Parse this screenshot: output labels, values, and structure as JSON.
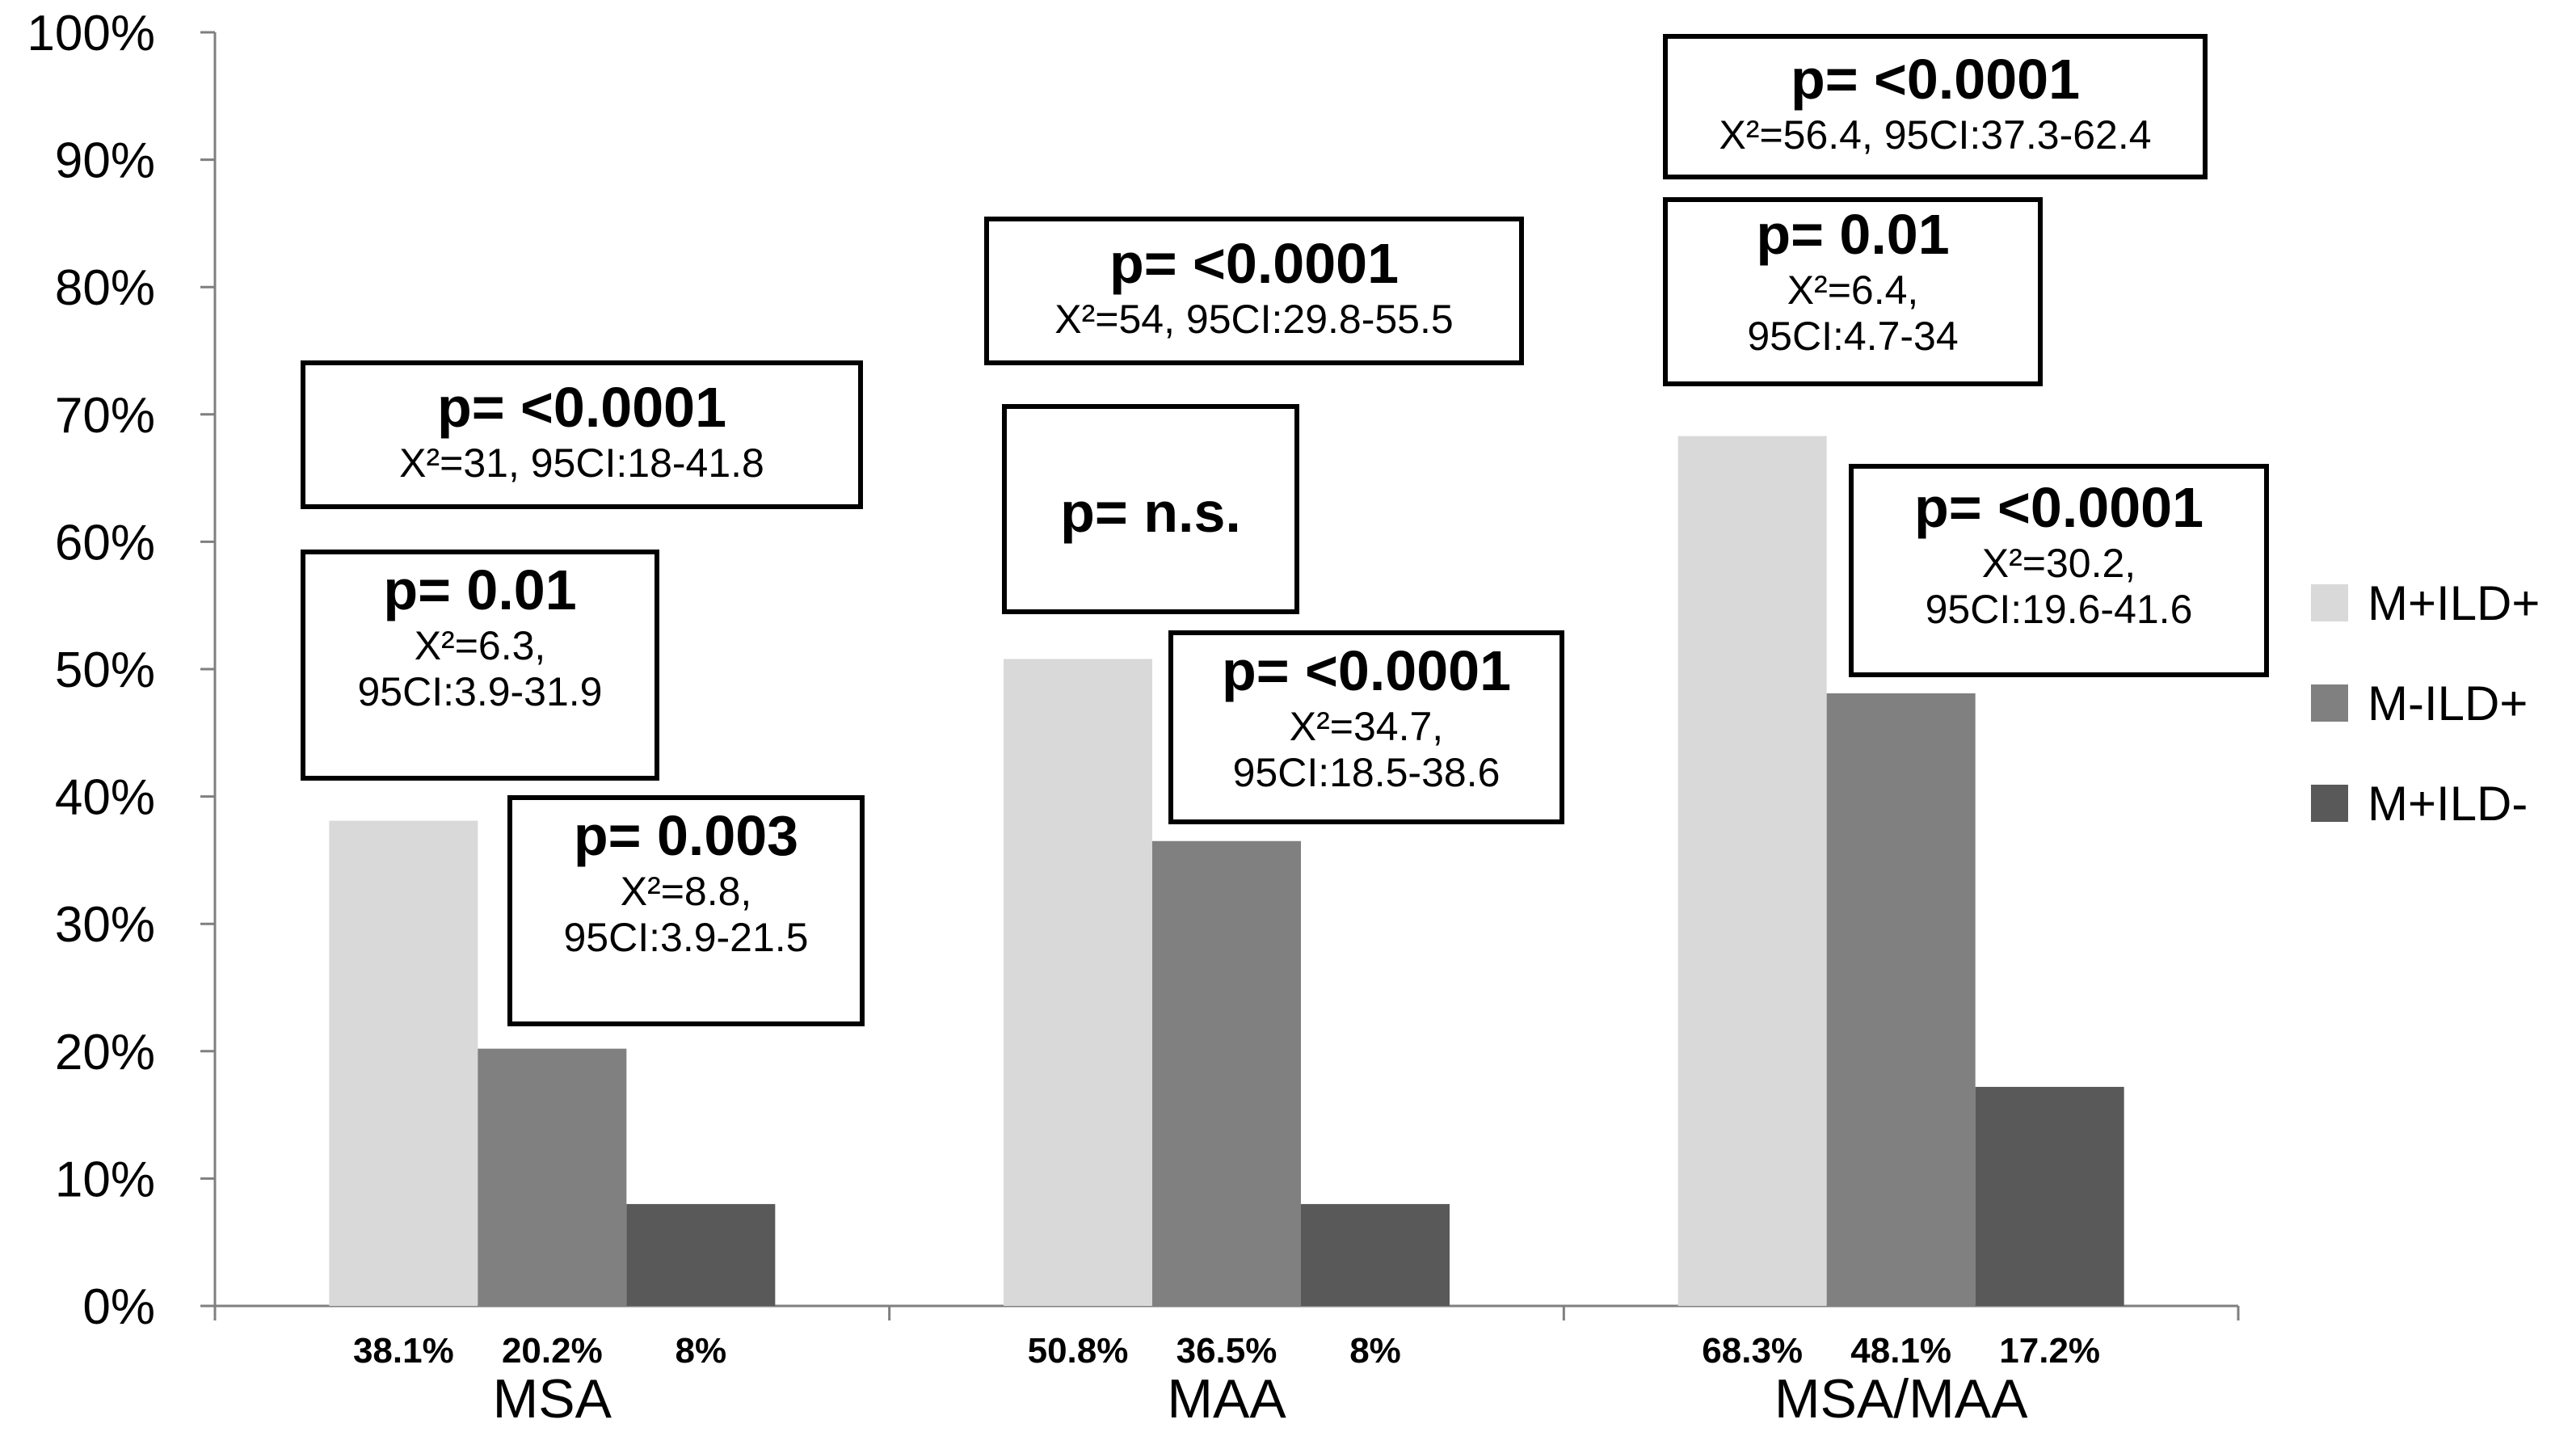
{
  "chart_data": {
    "type": "bar",
    "categories": [
      "MSA",
      "MAA",
      "MSA/MAA"
    ],
    "series": [
      {
        "name": "M+ILD+",
        "color": "#d9d9d9",
        "values": [
          38.1,
          50.8,
          68.3
        ],
        "labels": [
          "38.1%",
          "50.8%",
          "68.3%"
        ]
      },
      {
        "name": "M-ILD+",
        "color": "#808080",
        "values": [
          20.2,
          36.5,
          48.1
        ],
        "labels": [
          "20.2%",
          "36.5%",
          "48.1%"
        ]
      },
      {
        "name": "M+ILD-",
        "color": "#595959",
        "values": [
          8,
          8,
          17.2
        ],
        "labels": [
          "8%",
          "8%",
          "17.2%"
        ]
      }
    ],
    "yticks": [
      "0%",
      "10%",
      "20%",
      "30%",
      "40%",
      "50%",
      "60%",
      "70%",
      "80%",
      "90%",
      "100%"
    ],
    "ylim": [
      0,
      100
    ],
    "title": "",
    "xlabel": "",
    "ylabel": "",
    "grid": false,
    "legend_position": "right"
  },
  "annotations": [
    {
      "p": "p= <0.0001",
      "stat": "X²=31, 95CI:18-41.8"
    },
    {
      "p": "p= 0.01",
      "stat": "X²=6.3,",
      "ci": "95CI:3.9-31.9"
    },
    {
      "p": "p= 0.003",
      "stat": "X²=8.8,",
      "ci": "95CI:3.9-21.5"
    },
    {
      "p": "p= <0.0001",
      "stat": "X²=54, 95CI:29.8-55.5"
    },
    {
      "p": "p= n.s."
    },
    {
      "p": "p= <0.0001",
      "stat": "X²=34.7,",
      "ci": "95CI:18.5-38.6"
    },
    {
      "p": "p= <0.0001",
      "stat": "X²=56.4, 95CI:37.3-62.4"
    },
    {
      "p": "p= 0.01",
      "stat": "X²=6.4,",
      "ci": "95CI:4.7-34"
    },
    {
      "p": "p= <0.0001",
      "stat": "X²=30.2,",
      "ci": "95CI:19.6-41.6"
    }
  ]
}
